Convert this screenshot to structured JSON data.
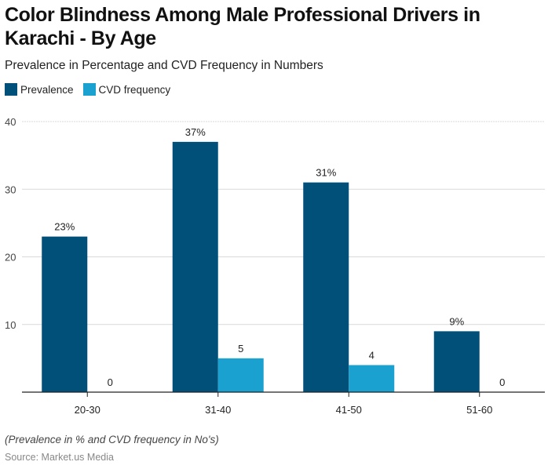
{
  "chart_data": {
    "type": "bar",
    "title": "Color Blindness Among Male Professional Drivers in Karachi - By Age",
    "subtitle": "Prevalence in Percentage and CVD Frequency in Numbers",
    "xlabel": "",
    "ylabel": "",
    "categories": [
      "20-30",
      "31-40",
      "41-50",
      "51-60"
    ],
    "series": [
      {
        "name": "Prevalence",
        "color": "#00507a",
        "values": [
          23,
          37,
          31,
          9
        ],
        "labels": [
          "23%",
          "37%",
          "31%",
          "9%"
        ]
      },
      {
        "name": "CVD frequency",
        "color": "#1aa1cf",
        "values": [
          0,
          5,
          4,
          0
        ],
        "labels": [
          "0",
          "5",
          "4",
          "0"
        ]
      }
    ],
    "ylim": [
      0,
      40
    ],
    "yticks": [
      10,
      20,
      30,
      40
    ],
    "ytick_labels": [
      "10",
      "20",
      "30",
      "40"
    ],
    "grid": true,
    "legend_position": "top-left",
    "note": "(Prevalence in % and CVD frequency in No's)",
    "source": "Source: Market.us Media"
  }
}
